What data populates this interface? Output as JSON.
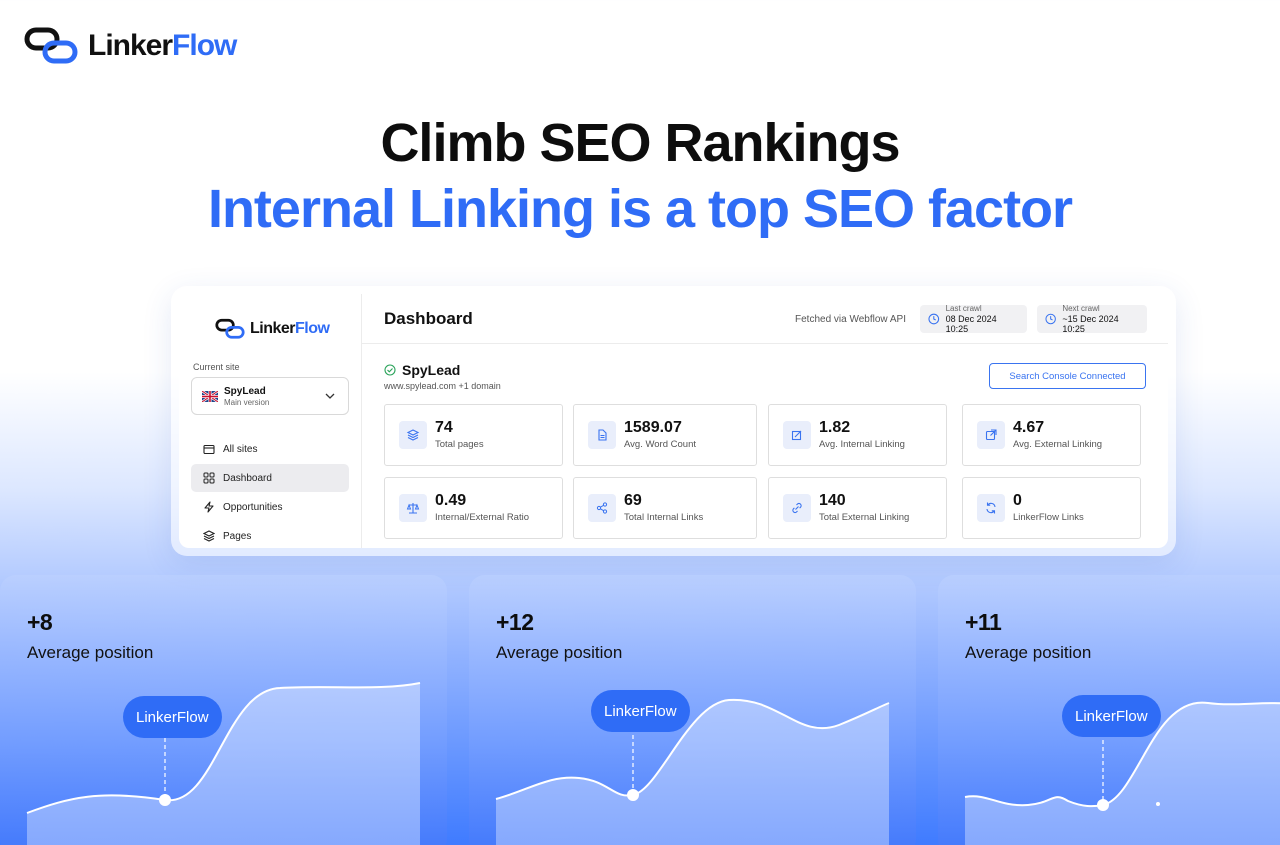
{
  "brand": {
    "part1": "Linker",
    "part2": "Flow"
  },
  "headline": {
    "line1": "Climb SEO Rankings",
    "line2": "Internal Linking is a top SEO factor"
  },
  "dashboard": {
    "sidebar": {
      "current_site_label": "Current site",
      "site_name": "SpyLead",
      "site_version": "Main version",
      "nav": [
        {
          "label": "All sites",
          "icon": "folder-icon"
        },
        {
          "label": "Dashboard",
          "icon": "grid-icon"
        },
        {
          "label": "Opportunities",
          "icon": "bolt-icon"
        },
        {
          "label": "Pages",
          "icon": "layers-icon"
        }
      ]
    },
    "title": "Dashboard",
    "fetched": "Fetched via Webflow API",
    "last_crawl": {
      "label": "Last crawl",
      "value": "08 Dec 2024 10:25"
    },
    "next_crawl": {
      "label": "Next crawl",
      "value": "~15 Dec 2024 10:25"
    },
    "site": {
      "name": "SpyLead",
      "url": "www.spylead.com +1 domain"
    },
    "gsc_button": "Search Console Connected",
    "stats": [
      {
        "value": "74",
        "label": "Total pages",
        "icon": "layers-icon"
      },
      {
        "value": "1589.07",
        "label": "Avg. Word Count",
        "icon": "document-icon"
      },
      {
        "value": "1.82",
        "label": "Avg. Internal Linking",
        "icon": "edit-link-icon"
      },
      {
        "value": "4.67",
        "label": "Avg. External Linking",
        "icon": "external-link-icon"
      },
      {
        "value": "0.49",
        "label": "Internal/External Ratio",
        "icon": "scale-icon"
      },
      {
        "value": "69",
        "label": "Total Internal Links",
        "icon": "share-icon"
      },
      {
        "value": "140",
        "label": "Total External Linking",
        "icon": "link-icon"
      },
      {
        "value": "0",
        "label": "LinkerFlow Links",
        "icon": "refresh-icon"
      }
    ]
  },
  "cards": [
    {
      "delta": "+8",
      "caption": "Average position",
      "pill": "LinkerFlow"
    },
    {
      "delta": "+12",
      "caption": "Average position",
      "pill": "LinkerFlow"
    },
    {
      "delta": "+11",
      "caption": "Average position",
      "pill": "LinkerFlow"
    }
  ],
  "colors": {
    "accent": "#2f6cf6",
    "dark": "#111111"
  }
}
